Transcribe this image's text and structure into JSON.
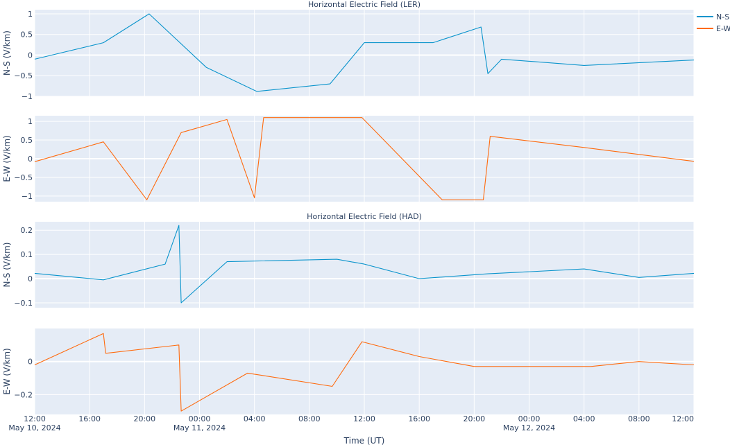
{
  "chart_data": {
    "type": "line",
    "x_axis": {
      "title": "Time (UT)",
      "range": [
        "2024-05-10T12:00",
        "2024-05-12T12:00"
      ],
      "tick_labels": [
        {
          "t": "2024-05-10T12:00",
          "line1": "12:00",
          "line2": "May 10, 2024"
        },
        {
          "t": "2024-05-10T16:00",
          "line1": "16:00",
          "line2": ""
        },
        {
          "t": "2024-05-10T20:00",
          "line1": "20:00",
          "line2": ""
        },
        {
          "t": "2024-05-11T00:00",
          "line1": "00:00",
          "line2": "May 11, 2024"
        },
        {
          "t": "2024-05-11T04:00",
          "line1": "04:00",
          "line2": ""
        },
        {
          "t": "2024-05-11T08:00",
          "line1": "08:00",
          "line2": ""
        },
        {
          "t": "2024-05-11T12:00",
          "line1": "12:00",
          "line2": ""
        },
        {
          "t": "2024-05-11T16:00",
          "line1": "16:00",
          "line2": ""
        },
        {
          "t": "2024-05-11T20:00",
          "line1": "20:00",
          "line2": ""
        },
        {
          "t": "2024-05-12T00:00",
          "line1": "00:00",
          "line2": "May 12, 2024"
        },
        {
          "t": "2024-05-12T04:00",
          "line1": "04:00",
          "line2": ""
        },
        {
          "t": "2024-05-12T08:00",
          "line1": "08:00",
          "line2": ""
        },
        {
          "t": "2024-05-12T12:00",
          "line1": "12:00",
          "line2": ""
        }
      ]
    },
    "legend": {
      "placement": "top-right",
      "entries": [
        {
          "name": "N-S",
          "color": "#0a94cc"
        },
        {
          "name": "E-W",
          "color": "#ff6a0d"
        }
      ]
    },
    "panels": [
      {
        "title": "Horizontal Electric Field (LER)",
        "ylabel": "N-S (V/km)",
        "ylim": [
          -1,
          1.1
        ],
        "yticks": [
          1,
          0.5,
          0,
          -0.5,
          -1
        ],
        "ytick_labels": [
          "1",
          "0.5",
          "0",
          "−0.5",
          "−1"
        ],
        "series": "N-S",
        "color": "#0a94cc",
        "x": [
          "2024-05-10T12:00",
          "2024-05-10T17:00",
          "2024-05-10T20:20",
          "2024-05-11T00:30",
          "2024-05-11T04:10",
          "2024-05-11T09:30",
          "2024-05-11T12:00",
          "2024-05-11T17:00",
          "2024-05-11T20:30",
          "2024-05-11T21:00",
          "2024-05-11T22:00",
          "2024-05-12T04:00",
          "2024-05-12T12:00"
        ],
        "y": [
          -0.1,
          0.3,
          1.0,
          -0.3,
          -0.88,
          -0.7,
          0.3,
          0.3,
          0.68,
          -0.45,
          -0.1,
          -0.25,
          -0.12
        ]
      },
      {
        "title": "",
        "ylabel": "E-W (V/km)",
        "ylim": [
          -1.15,
          1.15
        ],
        "yticks": [
          1,
          0.5,
          0,
          -0.5,
          -1
        ],
        "ytick_labels": [
          "1",
          "0.5",
          "0",
          "−0.5",
          "−1"
        ],
        "series": "E-W",
        "color": "#ff6a0d",
        "x": [
          "2024-05-10T12:00",
          "2024-05-10T17:00",
          "2024-05-10T20:10",
          "2024-05-10T22:40",
          "2024-05-11T02:00",
          "2024-05-11T04:00",
          "2024-05-11T04:40",
          "2024-05-11T11:50",
          "2024-05-11T17:40",
          "2024-05-11T20:40",
          "2024-05-11T21:10",
          "2024-05-12T04:00",
          "2024-05-12T12:00"
        ],
        "y": [
          -0.08,
          0.45,
          -1.1,
          0.7,
          1.05,
          -1.05,
          1.1,
          1.1,
          -1.1,
          -1.1,
          0.6,
          0.3,
          -0.07
        ]
      },
      {
        "title": "Horizontal Electric Field (HAD)",
        "ylabel": "N-S (V/km)",
        "ylim": [
          -0.12,
          0.235
        ],
        "yticks": [
          0.2,
          0.1,
          0,
          -0.1
        ],
        "ytick_labels": [
          "0.2",
          "0.1",
          "0",
          "−0.1"
        ],
        "series": "N-S",
        "color": "#0a94cc",
        "x": [
          "2024-05-10T12:00",
          "2024-05-10T17:00",
          "2024-05-10T21:30",
          "2024-05-10T22:30",
          "2024-05-10T22:40",
          "2024-05-11T02:00",
          "2024-05-11T10:00",
          "2024-05-11T12:00",
          "2024-05-11T16:00",
          "2024-05-11T21:00",
          "2024-05-12T04:00",
          "2024-05-12T08:00",
          "2024-05-12T12:00"
        ],
        "y": [
          0.022,
          -0.005,
          0.06,
          0.22,
          -0.1,
          0.07,
          0.08,
          0.06,
          0.0,
          0.02,
          0.04,
          0.005,
          0.022
        ]
      },
      {
        "title": "",
        "ylabel": "E-W (V/km)",
        "ylim": [
          -0.32,
          0.2
        ],
        "yticks": [
          0,
          -0.2
        ],
        "ytick_labels": [
          "0",
          "−0.2"
        ],
        "series": "E-W",
        "color": "#ff6a0d",
        "x": [
          "2024-05-10T12:00",
          "2024-05-10T17:00",
          "2024-05-10T17:10",
          "2024-05-10T22:30",
          "2024-05-10T22:40",
          "2024-05-11T03:30",
          "2024-05-11T09:40",
          "2024-05-11T11:50",
          "2024-05-11T16:00",
          "2024-05-11T20:00",
          "2024-05-12T04:30",
          "2024-05-12T08:00",
          "2024-05-12T12:00"
        ],
        "y": [
          -0.02,
          0.17,
          0.05,
          0.1,
          -0.3,
          -0.07,
          -0.15,
          0.12,
          0.03,
          -0.03,
          -0.03,
          0.0,
          -0.02
        ]
      }
    ]
  }
}
